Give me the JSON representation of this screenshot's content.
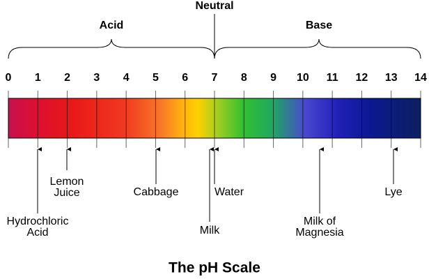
{
  "header": {
    "neutral": "Neutral",
    "acid": "Acid",
    "base": "Base"
  },
  "scale": {
    "ticks": [
      0,
      1,
      2,
      3,
      4,
      5,
      6,
      7,
      8,
      9,
      10,
      11,
      12,
      13,
      14
    ]
  },
  "substances": [
    {
      "lines": [
        "Hydrochloric",
        "Acid"
      ]
    },
    {
      "lines": [
        "Lemon",
        "Juice"
      ]
    },
    {
      "lines": [
        "Cabbage"
      ]
    },
    {
      "lines": [
        "Milk"
      ]
    },
    {
      "lines": [
        "Water"
      ]
    },
    {
      "lines": [
        "Milk of",
        "Magnesia"
      ]
    },
    {
      "lines": [
        "Lye"
      ]
    }
  ],
  "title": "The pH Scale"
}
